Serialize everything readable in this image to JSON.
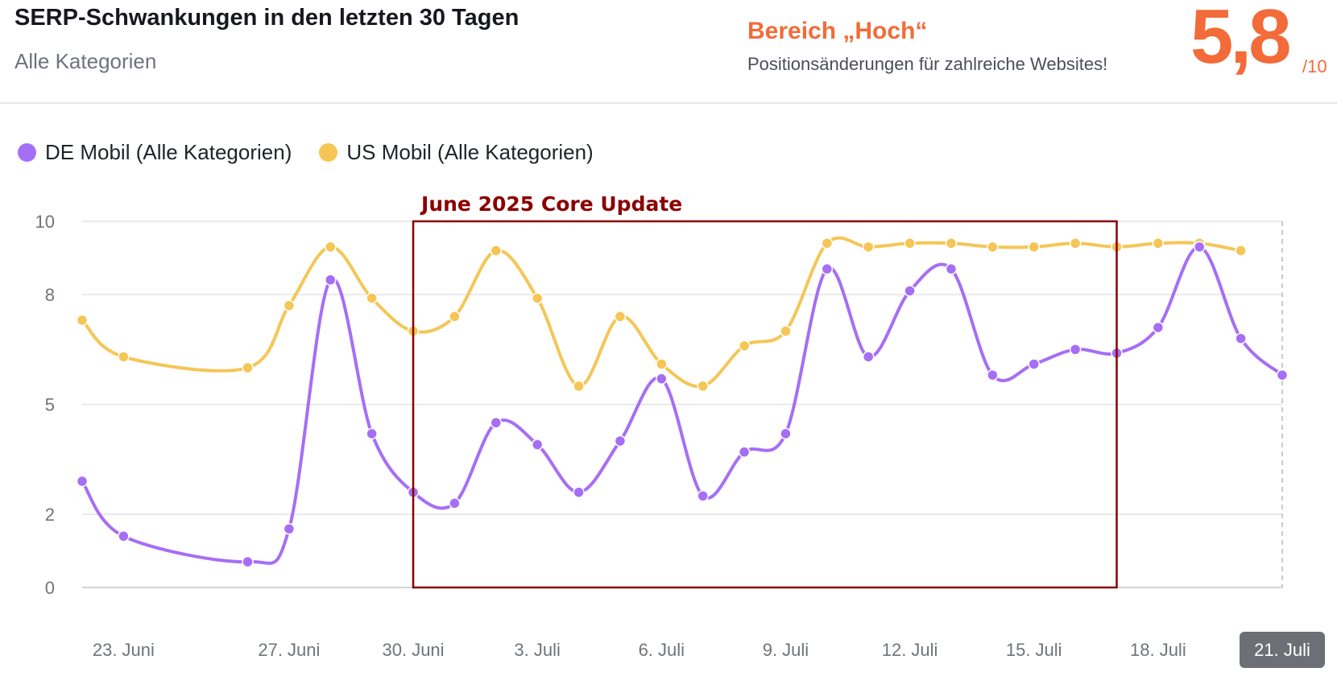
{
  "header": {
    "title": "SERP-Schwankungen in den letzten 30 Tagen",
    "subtitle": "Alle Kategorien",
    "range_label": "Bereich „Hoch“",
    "range_description": "Positionsänderungen für zahlreiche Websites!",
    "score": "5,8",
    "score_max": "/10",
    "accent_color": "#f26b38"
  },
  "chart_data": {
    "type": "line",
    "x": [
      "22. Juni",
      "23. Juni",
      "26. Juni",
      "27. Juni",
      "28. Juni",
      "29. Juni",
      "30. Juni",
      "1. Juli",
      "2. Juli",
      "3. Juli",
      "4. Juli",
      "5. Juli",
      "6. Juli",
      "7. Juli",
      "8. Juli",
      "9. Juli",
      "10. Juli",
      "11. Juli",
      "12. Juli",
      "13. Juli",
      "14. Juli",
      "15. Juli",
      "16. Juli",
      "17. Juli",
      "18. Juli",
      "19. Juli",
      "20. Juli",
      "21. Juli"
    ],
    "series": [
      {
        "name": "DE Mobil (Alle Kategorien)",
        "color": "#a66ef5",
        "values": [
          2.9,
          1.4,
          0.7,
          1.6,
          8.4,
          4.2,
          2.6,
          2.3,
          4.5,
          3.9,
          2.6,
          4.0,
          5.7,
          2.5,
          3.7,
          4.2,
          8.7,
          6.3,
          8.1,
          8.7,
          5.8,
          6.1,
          6.5,
          6.4,
          7.1,
          9.3,
          6.8,
          5.8
        ]
      },
      {
        "name": "US Mobil (Alle Kategorien)",
        "color": "#f5c656",
        "values": [
          7.3,
          6.3,
          6.0,
          7.7,
          9.3,
          7.9,
          7.0,
          7.4,
          9.2,
          7.9,
          5.5,
          7.4,
          6.1,
          5.5,
          6.6,
          7.0,
          9.4,
          9.3,
          9.4,
          9.4,
          9.3,
          9.3,
          9.4,
          9.3,
          9.4,
          9.4,
          9.2,
          null
        ]
      }
    ],
    "xticks": [
      "23. Juni",
      "27. Juni",
      "30. Juni",
      "3. Juli",
      "6. Juli",
      "9. Juli",
      "12. Juli",
      "15. Juli",
      "18. Juli",
      "21. Juli"
    ],
    "active_tick": "21. Juli",
    "yticks": [
      "0",
      "2",
      "5",
      "8",
      "10"
    ],
    "ylim": [
      0,
      10
    ],
    "grid": true,
    "legend": "top-left",
    "annotations": [
      {
        "label": "June 2025 Core Update",
        "x_start": "30. Juni",
        "x_end": "17. Juli",
        "color": "#8b0000"
      }
    ]
  }
}
